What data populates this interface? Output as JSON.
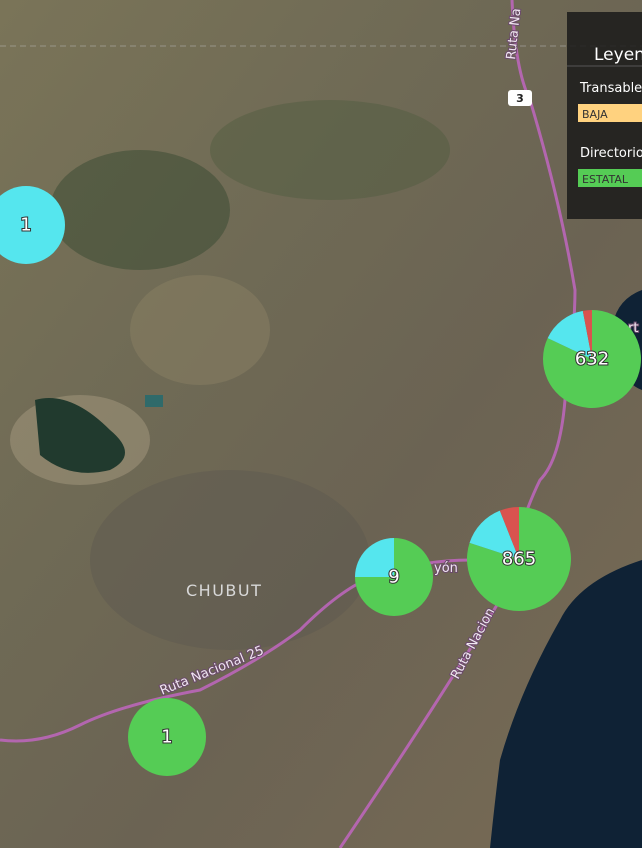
{
  "map": {
    "labels": {
      "region": "CHUBUT",
      "route_25": "Ruta Nacional 25",
      "route_3_south": "Ruta Nacion",
      "route_3_north": "Ruta Na",
      "shield": "3",
      "place": "yón",
      "place_east": "rt"
    },
    "legend": {
      "title": "Leyen",
      "sections": [
        {
          "heading": "Transable",
          "item": "BAJA",
          "color": "#ffd27f"
        },
        {
          "heading": "Directorio",
          "item": "ESTATAL",
          "color": "#55cc55"
        }
      ]
    },
    "slice_colors": [
      "#55cc55",
      "#55e6ee",
      "#d9534f"
    ],
    "clusters": [
      {
        "label": "1",
        "shares": [
          0,
          100,
          0
        ]
      },
      {
        "label": "632",
        "shares": [
          82,
          15,
          3
        ]
      },
      {
        "label": "865",
        "shares": [
          80,
          14,
          6
        ]
      },
      {
        "label": "9",
        "shares": [
          75,
          25,
          0
        ]
      },
      {
        "label": "1",
        "shares": [
          100,
          0,
          0
        ]
      }
    ]
  }
}
